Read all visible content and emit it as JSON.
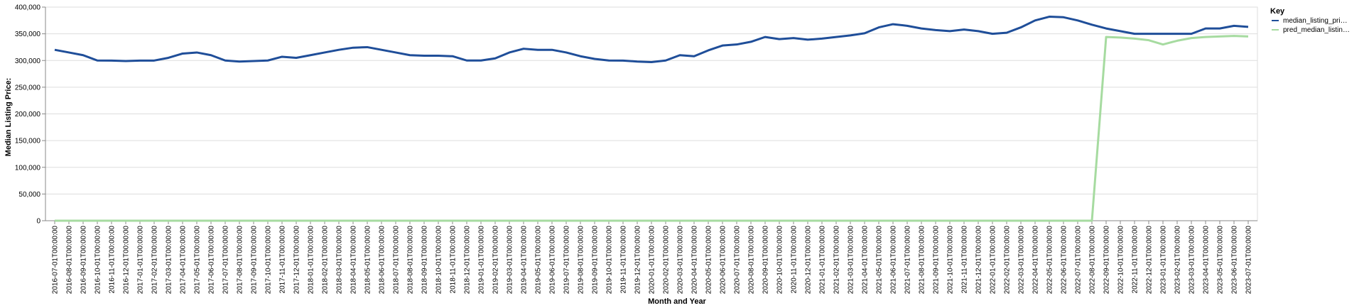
{
  "chart_data": {
    "type": "line",
    "xlabel": "Month and Year",
    "ylabel": "Median Listing Price:",
    "ylim": [
      0,
      400000
    ],
    "yticks": [
      0,
      50000,
      100000,
      150000,
      200000,
      250000,
      300000,
      350000,
      400000
    ],
    "ytick_labels": [
      "0",
      "50,000",
      "100,000",
      "150,000",
      "200,000",
      "250,000",
      "300,000",
      "350,000",
      "400,000"
    ],
    "grid": true,
    "legend": {
      "title": "Key",
      "placement": "right"
    },
    "x": [
      "2016-07-01T00:00:00",
      "2016-08-01T00:00:00",
      "2016-09-01T00:00:00",
      "2016-10-01T00:00:00",
      "2016-11-01T00:00:00",
      "2016-12-01T00:00:00",
      "2017-01-01T00:00:00",
      "2017-02-01T00:00:00",
      "2017-03-01T00:00:00",
      "2017-04-01T00:00:00",
      "2017-05-01T00:00:00",
      "2017-06-01T00:00:00",
      "2017-07-01T00:00:00",
      "2017-08-01T00:00:00",
      "2017-09-01T00:00:00",
      "2017-10-01T00:00:00",
      "2017-11-01T00:00:00",
      "2017-12-01T00:00:00",
      "2018-01-01T00:00:00",
      "2018-02-01T00:00:00",
      "2018-03-01T00:00:00",
      "2018-04-01T00:00:00",
      "2018-05-01T00:00:00",
      "2018-06-01T00:00:00",
      "2018-07-01T00:00:00",
      "2018-08-01T00:00:00",
      "2018-09-01T00:00:00",
      "2018-10-01T00:00:00",
      "2018-11-01T00:00:00",
      "2018-12-01T00:00:00",
      "2019-01-01T00:00:00",
      "2019-02-01T00:00:00",
      "2019-03-01T00:00:00",
      "2019-04-01T00:00:00",
      "2019-05-01T00:00:00",
      "2019-06-01T00:00:00",
      "2019-07-01T00:00:00",
      "2019-08-01T00:00:00",
      "2019-09-01T00:00:00",
      "2019-10-01T00:00:00",
      "2019-11-01T00:00:00",
      "2019-12-01T00:00:00",
      "2020-01-01T00:00:00",
      "2020-02-01T00:00:00",
      "2020-03-01T00:00:00",
      "2020-04-01T00:00:00",
      "2020-05-01T00:00:00",
      "2020-06-01T00:00:00",
      "2020-07-01T00:00:00",
      "2020-08-01T00:00:00",
      "2020-09-01T00:00:00",
      "2020-10-01T00:00:00",
      "2020-11-01T00:00:00",
      "2020-12-01T00:00:00",
      "2021-01-01T00:00:00",
      "2021-02-01T00:00:00",
      "2021-03-01T00:00:00",
      "2021-04-01T00:00:00",
      "2021-05-01T00:00:00",
      "2021-06-01T00:00:00",
      "2021-07-01T00:00:00",
      "2021-08-01T00:00:00",
      "2021-09-01T00:00:00",
      "2021-10-01T00:00:00",
      "2021-11-01T00:00:00",
      "2021-12-01T00:00:00",
      "2022-01-01T00:00:00",
      "2022-02-01T00:00:00",
      "2022-03-01T00:00:00",
      "2022-04-01T00:00:00",
      "2022-05-01T00:00:00",
      "2022-06-01T00:00:00",
      "2022-07-01T00:00:00",
      "2022-08-01T00:00:00",
      "2022-09-01T00:00:00",
      "2022-10-01T00:00:00",
      "2022-11-01T00:00:00",
      "2022-12-01T00:00:00",
      "2023-01-01T00:00:00",
      "2023-02-01T00:00:00",
      "2023-03-01T00:00:00",
      "2023-04-01T00:00:00",
      "2023-05-01T00:00:00",
      "2023-06-01T00:00:00",
      "2023-07-01T00:00:00"
    ],
    "series": [
      {
        "name": "median_listing_pri…",
        "color": "#1f4e99",
        "values": [
          320000,
          315000,
          310000,
          300000,
          299900,
          299000,
          299900,
          299900,
          305000,
          313000,
          315000,
          310000,
          300000,
          298000,
          299000,
          300000,
          307000,
          305000,
          310000,
          315000,
          320000,
          324000,
          325000,
          320000,
          315000,
          310000,
          309000,
          309000,
          308000,
          300000,
          300000,
          304000,
          315000,
          322000,
          320000,
          320000,
          315000,
          308000,
          303000,
          300000,
          299900,
          298000,
          297000,
          300000,
          310000,
          308000,
          319000,
          328000,
          330000,
          335000,
          344000,
          340000,
          342000,
          339000,
          341000,
          344000,
          347000,
          351000,
          362000,
          368000,
          365000,
          360000,
          357000,
          355000,
          358000,
          355000,
          350000,
          352000,
          362000,
          375000,
          382000,
          381000,
          375000,
          367000,
          360000,
          355000,
          350000,
          350000,
          350000,
          350000,
          350000,
          360000,
          360000,
          365000,
          363000
        ]
      },
      {
        "name": "pred_median_listin…",
        "color": "#a6dba0",
        "values": [
          0,
          0,
          0,
          0,
          0,
          0,
          0,
          0,
          0,
          0,
          0,
          0,
          0,
          0,
          0,
          0,
          0,
          0,
          0,
          0,
          0,
          0,
          0,
          0,
          0,
          0,
          0,
          0,
          0,
          0,
          0,
          0,
          0,
          0,
          0,
          0,
          0,
          0,
          0,
          0,
          0,
          0,
          0,
          0,
          0,
          0,
          0,
          0,
          0,
          0,
          0,
          0,
          0,
          0,
          0,
          0,
          0,
          0,
          0,
          0,
          0,
          0,
          0,
          0,
          0,
          0,
          0,
          0,
          0,
          0,
          0,
          0,
          0,
          0,
          344000,
          343000,
          341000,
          338000,
          330000,
          337000,
          342000,
          344000,
          345000,
          346000,
          345000
        ]
      }
    ]
  }
}
